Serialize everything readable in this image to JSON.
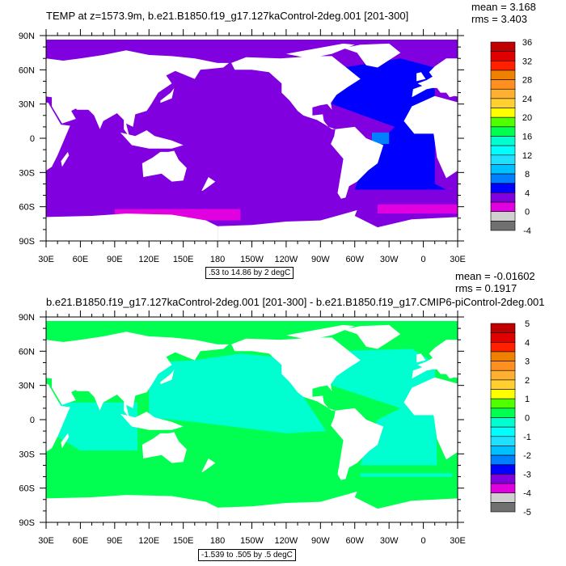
{
  "panels": [
    {
      "title": "TEMP at z=1573.9m, b.e21.B1850.f19_g17.127kaControl-2deg.001 [201-300]",
      "mean": "mean = 3.168",
      "rms": "rms = 3.403",
      "note": ".53 to 14.86 by 2 degC",
      "colorbar_labels": [
        "36",
        "32",
        "28",
        "24",
        "20",
        "16",
        "12",
        "8",
        "4",
        "0",
        "-4"
      ],
      "ocean_color": "#8000e0"
    },
    {
      "title": "b.e21.B1850.f19_g17.127kaControl-2deg.001 [201-300] - b.e21.B1850.f19_g17.CMIP6-piControl-2deg.001",
      "mean": "mean = -0.01602",
      "rms": "rms = 0.1917",
      "note": "-1.539 to .505 by .5 degC",
      "colorbar_labels": [
        "5",
        "4",
        "3",
        "2",
        "1",
        "0",
        "-1",
        "-2",
        "-3",
        "-4",
        "-5"
      ],
      "ocean_color": "#00ff50"
    }
  ],
  "lon_labels": [
    "30E",
    "60E",
    "90E",
    "120E",
    "150E",
    "180",
    "150W",
    "120W",
    "90W",
    "60W",
    "30W",
    "0",
    "30E"
  ],
  "lat_labels": [
    "90N",
    "60N",
    "30N",
    "0",
    "30S",
    "60S",
    "90S"
  ],
  "colorbar_colors": [
    "#c00000",
    "#e00000",
    "#ff2000",
    "#f08000",
    "#ff9020",
    "#ffb030",
    "#ffd030",
    "#ffff00",
    "#50ff00",
    "#00ff50",
    "#00ffd0",
    "#00ffff",
    "#20e0ff",
    "#00c0ff",
    "#0080ff",
    "#0000ff",
    "#8000e0",
    "#e000e0",
    "#d0d0d0",
    "#707070"
  ]
}
